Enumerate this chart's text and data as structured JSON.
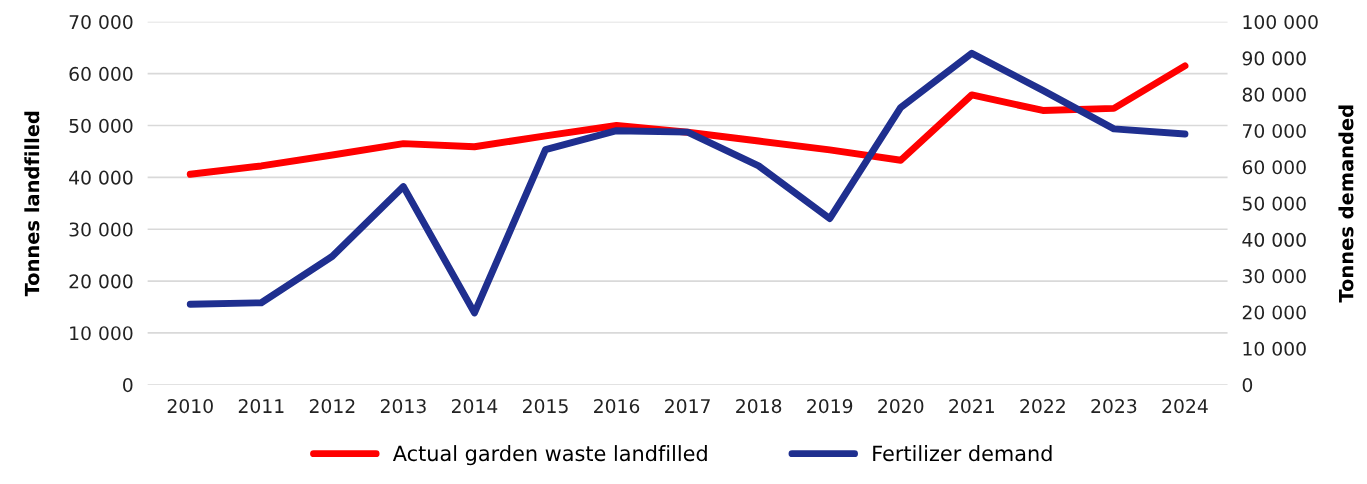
{
  "chart_data": {
    "type": "line",
    "ylabel": "Tonnes landfilled",
    "y2label": "Tonnes demanded",
    "categories": [
      "2010",
      "2011",
      "2012",
      "2013",
      "2014",
      "2015",
      "2016",
      "2017",
      "2018",
      "2019",
      "2020",
      "2021",
      "2022",
      "2023",
      "2024"
    ],
    "series": [
      {
        "name": "Actual garden waste landfilled",
        "color": "#ff0000",
        "values": [
          40600,
          42200,
          44300,
          46500,
          45900,
          48000,
          50000,
          48700,
          47000,
          45300,
          43300,
          55900,
          52900,
          53300,
          61500
        ]
      },
      {
        "name": "Fertilizer demand",
        "color": "#1f2f8f",
        "axis": "y2",
        "values": [
          22200,
          22600,
          35400,
          54600,
          19800,
          64800,
          70000,
          69600,
          60300,
          45800,
          76400,
          91300,
          81100,
          70500,
          69100
        ]
      }
    ],
    "ylim": [
      0,
      70000
    ],
    "yticks": [
      {
        "value": 0,
        "label": "0"
      },
      {
        "value": 10000,
        "label": "10 000"
      },
      {
        "value": 20000,
        "label": "20 000"
      },
      {
        "value": 30000,
        "label": "30 000"
      },
      {
        "value": 40000,
        "label": "40 000"
      },
      {
        "value": 50000,
        "label": "50 000"
      },
      {
        "value": 60000,
        "label": "60 000"
      },
      {
        "value": 70000,
        "label": "70 000"
      }
    ],
    "y2lim": [
      0,
      100000
    ],
    "y2ticks": [
      {
        "value": 0,
        "label": "0"
      },
      {
        "value": 10000,
        "label": "10 000"
      },
      {
        "value": 20000,
        "label": "20 000"
      },
      {
        "value": 30000,
        "label": "30 000"
      },
      {
        "value": 40000,
        "label": "40 000"
      },
      {
        "value": 50000,
        "label": "50 000"
      },
      {
        "value": 60000,
        "label": "60 000"
      },
      {
        "value": 70000,
        "label": "70 000"
      },
      {
        "value": 80000,
        "label": "80 000"
      },
      {
        "value": 90000,
        "label": "90 000"
      },
      {
        "value": 100000,
        "label": "100 000"
      }
    ],
    "grid": "y",
    "legend": "bottom",
    "marker": "none",
    "line_style": "solid"
  }
}
